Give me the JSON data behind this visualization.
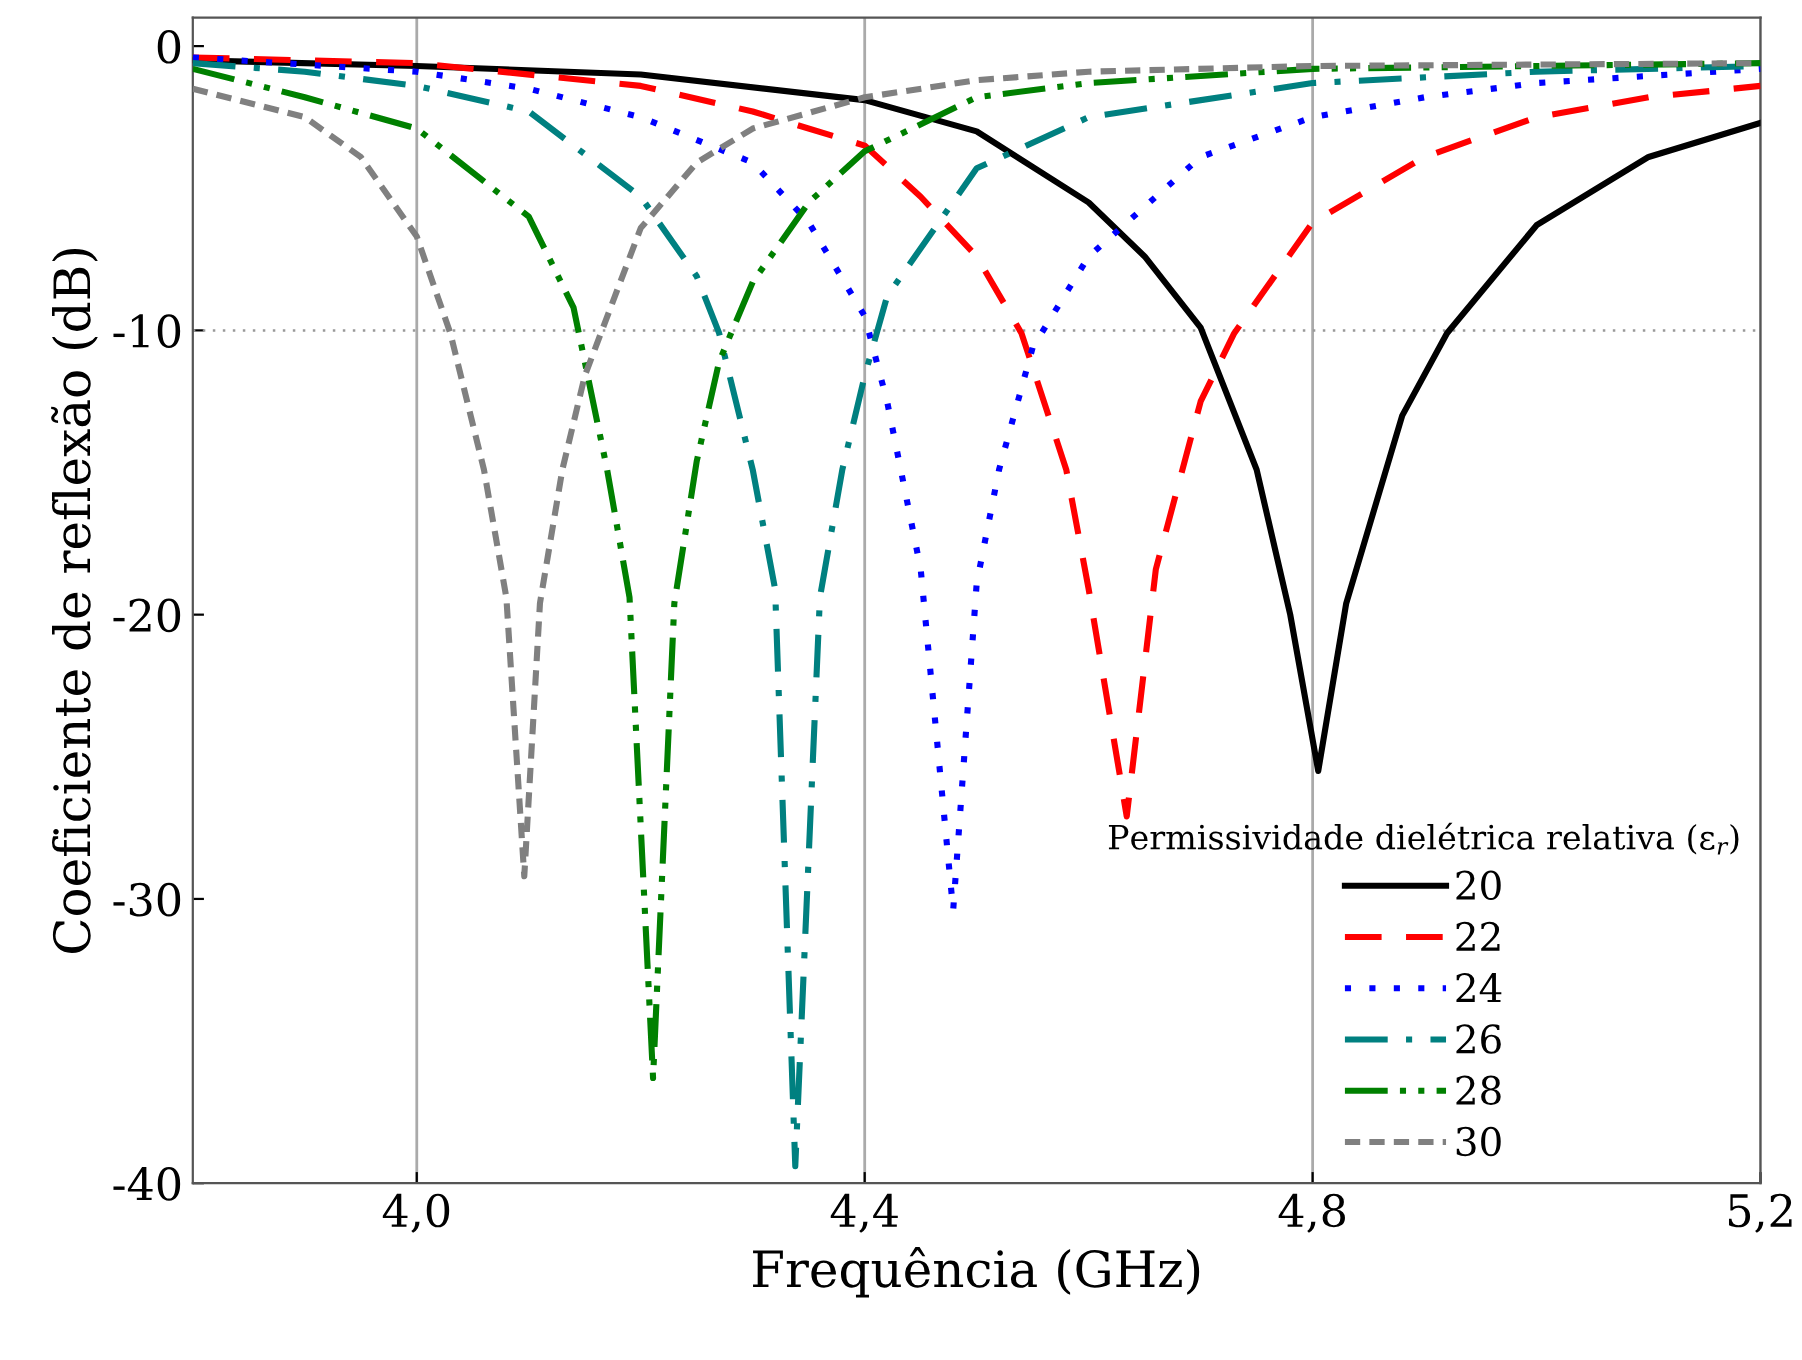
{
  "chart_data": {
    "type": "line",
    "xlabel": "Frequência (GHz)",
    "ylabel": "Coeficiente de reflexão (dB)",
    "legend_title": "Permissividade dielétrica relativa (ε$_{r}$)",
    "xlim": [
      3.8,
      5.2
    ],
    "ylim": [
      -40,
      1
    ],
    "xticks": [
      {
        "value": 4.0,
        "label": "4,0"
      },
      {
        "value": 4.4,
        "label": "4,4"
      },
      {
        "value": 4.8,
        "label": "4,8"
      },
      {
        "value": 5.2,
        "label": "5,2"
      }
    ],
    "yticks": [
      {
        "value": -40,
        "label": "-40"
      },
      {
        "value": -30,
        "label": "-30"
      },
      {
        "value": -20,
        "label": "-20"
      },
      {
        "value": -10,
        "label": "-10"
      },
      0
    ],
    "grid": "x",
    "legend": "bottom right",
    "ref_lines": [
      {
        "axis": "y",
        "value": -10,
        "color": "#999999",
        "line_style": "dotted"
      }
    ],
    "series": [
      {
        "name": "20",
        "color": "#000000",
        "line_style": "solid",
        "x": [
          3.8,
          4.0,
          4.2,
          4.4,
          4.5,
          4.6,
          4.65,
          4.7,
          4.75,
          4.78,
          4.805,
          4.83,
          4.88,
          4.92,
          5.0,
          5.1,
          5.2
        ],
        "values": [
          -0.5,
          -0.7,
          -1.0,
          -1.9,
          -3.0,
          -5.5,
          -7.4,
          -9.9,
          -14.9,
          -20,
          -25.5,
          -19.6,
          -13,
          -10.1,
          -6.3,
          -3.9,
          -2.7
        ]
      },
      {
        "name": "22",
        "color": "#ff0000",
        "line_style": "dashed",
        "x": [
          3.8,
          4.0,
          4.2,
          4.3,
          4.4,
          4.45,
          4.5,
          4.54,
          4.58,
          4.6,
          4.634,
          4.66,
          4.7,
          4.73,
          4.8,
          4.9,
          5.0,
          5.1,
          5.2
        ],
        "values": [
          -0.4,
          -0.6,
          -1.4,
          -2.3,
          -3.5,
          -5.3,
          -7.4,
          -10.1,
          -14.9,
          -19.1,
          -27.1,
          -18.4,
          -12.5,
          -10.1,
          -6.2,
          -3.9,
          -2.5,
          -1.8,
          -1.4
        ]
      },
      {
        "name": "24",
        "color": "#0000ff",
        "line_style": "dotted",
        "x": [
          3.8,
          4.0,
          4.1,
          4.2,
          4.3,
          4.35,
          4.4,
          4.42,
          4.45,
          4.479,
          4.5,
          4.52,
          4.55,
          4.6,
          4.7,
          4.8,
          4.9,
          5.0,
          5.2
        ],
        "values": [
          -0.4,
          -0.9,
          -1.5,
          -2.5,
          -4.1,
          -6.2,
          -9.5,
          -12.5,
          -18.4,
          -30.4,
          -18.9,
          -14.9,
          -10.6,
          -7.4,
          -3.9,
          -2.5,
          -1.8,
          -1.3,
          -0.8
        ]
      },
      {
        "name": "26",
        "color": "#008080",
        "line_style": "dashdot",
        "x": [
          3.8,
          3.9,
          4.0,
          4.1,
          4.2,
          4.25,
          4.27,
          4.3,
          4.32,
          4.338,
          4.36,
          4.38,
          4.4,
          4.42,
          4.5,
          4.6,
          4.8,
          5.0,
          5.2
        ],
        "values": [
          -0.6,
          -0.9,
          -1.4,
          -2.3,
          -5.3,
          -8.1,
          -10.1,
          -14.9,
          -19.1,
          -39.4,
          -19.4,
          -14.9,
          -11.6,
          -8.8,
          -4.3,
          -2.5,
          -1.3,
          -0.9,
          -0.7
        ]
      },
      {
        "name": "28",
        "color": "#008000",
        "line_style": "dashdotdot",
        "x": [
          3.8,
          3.9,
          4.0,
          4.1,
          4.14,
          4.17,
          4.19,
          4.211,
          4.23,
          4.25,
          4.27,
          4.3,
          4.35,
          4.4,
          4.5,
          4.6,
          4.8,
          5.2
        ],
        "values": [
          -0.8,
          -1.8,
          -2.9,
          -6.0,
          -9.2,
          -14.9,
          -19.4,
          -36.3,
          -19.6,
          -14.6,
          -11.1,
          -8.3,
          -5.5,
          -3.7,
          -1.8,
          -1.3,
          -0.8,
          -0.6
        ]
      },
      {
        "name": "30",
        "color": "#808080",
        "line_style": "shortdash",
        "x": [
          3.8,
          3.9,
          3.95,
          4.0,
          4.03,
          4.06,
          4.08,
          4.096,
          4.11,
          4.13,
          4.15,
          4.2,
          4.25,
          4.3,
          4.4,
          4.5,
          4.6,
          4.8,
          5.2
        ],
        "values": [
          -1.5,
          -2.5,
          -3.9,
          -6.7,
          -10.1,
          -14.9,
          -19.4,
          -29.2,
          -19.6,
          -14.9,
          -11.6,
          -6.4,
          -4.1,
          -2.9,
          -1.8,
          -1.2,
          -0.9,
          -0.7,
          -0.6
        ]
      }
    ]
  }
}
